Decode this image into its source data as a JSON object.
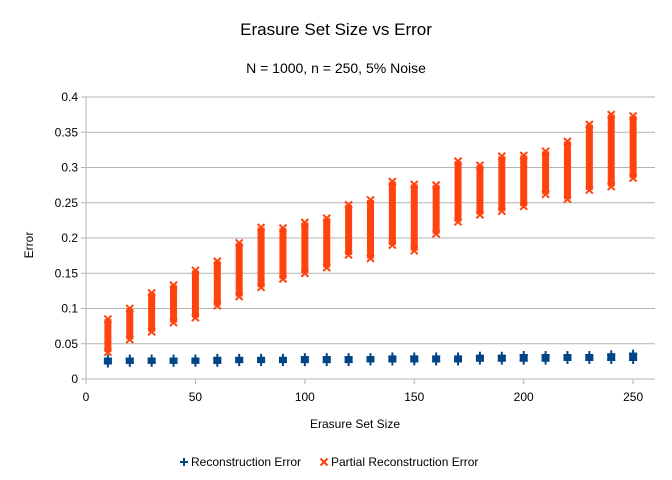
{
  "chart_data": {
    "type": "scatter",
    "title": "Erasure Set Size vs Error",
    "subtitle": "N = 1000, n = 250, 5% Noise",
    "xlabel": "Erasure Set Size",
    "ylabel": "Error",
    "xlim": [
      0,
      260
    ],
    "ylim": [
      0,
      0.4
    ],
    "xticks": [
      "0",
      "50",
      "100",
      "150",
      "200",
      "250"
    ],
    "yticks": [
      "0",
      "0.05",
      "0.1",
      "0.15",
      "0.2",
      "0.25",
      "0.3",
      "0.35",
      "0.4"
    ],
    "grid": "horizontal",
    "legend_position": "bottom",
    "x": [
      10,
      20,
      30,
      40,
      50,
      60,
      70,
      80,
      90,
      100,
      110,
      120,
      130,
      140,
      150,
      160,
      170,
      180,
      190,
      200,
      210,
      220,
      230,
      240,
      250
    ],
    "series": [
      {
        "name": "Reconstruction Error",
        "marker": "plus",
        "color": "#004586",
        "y_min": [
          0.022,
          0.023,
          0.023,
          0.023,
          0.023,
          0.023,
          0.024,
          0.024,
          0.024,
          0.024,
          0.024,
          0.024,
          0.025,
          0.025,
          0.025,
          0.025,
          0.025,
          0.026,
          0.026,
          0.026,
          0.026,
          0.027,
          0.027,
          0.027,
          0.027
        ],
        "y_max": [
          0.029,
          0.029,
          0.029,
          0.029,
          0.029,
          0.03,
          0.03,
          0.03,
          0.03,
          0.031,
          0.031,
          0.031,
          0.031,
          0.032,
          0.032,
          0.032,
          0.032,
          0.033,
          0.033,
          0.034,
          0.034,
          0.034,
          0.034,
          0.035,
          0.036
        ]
      },
      {
        "name": "Partial Reconstruction Error",
        "marker": "x",
        "color": "#ff420e",
        "y_min": [
          0.038,
          0.056,
          0.067,
          0.08,
          0.087,
          0.104,
          0.117,
          0.13,
          0.142,
          0.15,
          0.158,
          0.176,
          0.171,
          0.19,
          0.182,
          0.206,
          0.223,
          0.233,
          0.238,
          0.245,
          0.262,
          0.255,
          0.268,
          0.273,
          0.285
        ],
        "y_max": [
          0.085,
          0.1,
          0.122,
          0.133,
          0.154,
          0.167,
          0.193,
          0.215,
          0.214,
          0.222,
          0.228,
          0.247,
          0.254,
          0.28,
          0.276,
          0.275,
          0.309,
          0.303,
          0.316,
          0.317,
          0.323,
          0.337,
          0.361,
          0.375,
          0.373
        ]
      }
    ]
  }
}
